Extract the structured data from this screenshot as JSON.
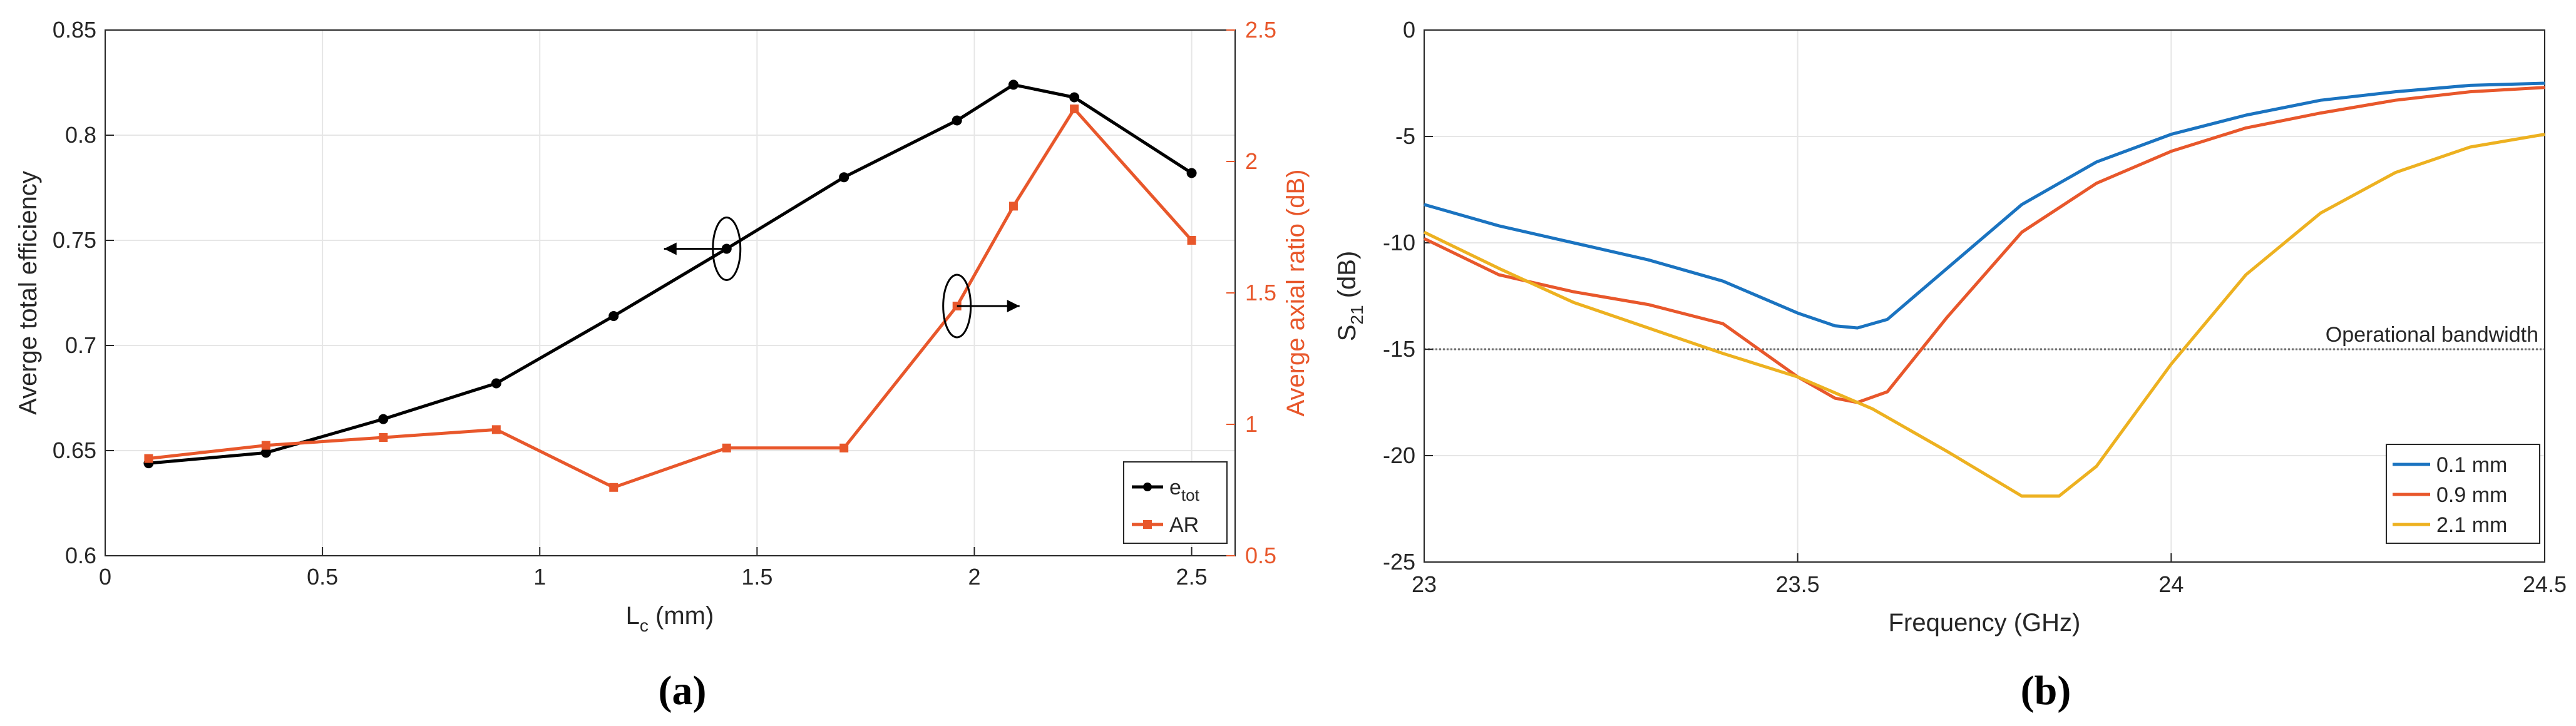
{
  "chart_data": [
    {
      "type": "line",
      "panel_label": "(a)",
      "panel_letter": "a",
      "xlabel_main": "L",
      "xlabel_sub": "c",
      "xlabel_tail": " (mm)",
      "ylabel_left": "Averge total efficiency",
      "ylabel_right": "Averge axial ratio (dB)",
      "xlim": [
        0,
        2.6
      ],
      "ylim_left": [
        0.6,
        0.85
      ],
      "ylim_right": [
        0.5,
        2.5
      ],
      "xticks": [
        "0",
        "0.5",
        "1",
        "1.5",
        "2",
        "2.5"
      ],
      "yticks_left": [
        "0.6",
        "0.65",
        "0.7",
        "0.75",
        "0.8",
        "0.85"
      ],
      "yticks_right": [
        "0.5",
        "1",
        "1.5",
        "2",
        "2.5"
      ],
      "grid": true,
      "legend_position": "bottom-right",
      "series": [
        {
          "name": "e_tot",
          "legend_main": "e",
          "legend_sub": "tot",
          "axis": "left",
          "color": "#000000",
          "marker": "circle",
          "x": [
            0.1,
            0.37,
            0.64,
            0.9,
            1.17,
            1.43,
            1.7,
            1.96,
            2.09,
            2.23,
            2.5
          ],
          "values": [
            0.644,
            0.649,
            0.665,
            0.682,
            0.714,
            0.746,
            0.78,
            0.807,
            0.824,
            0.818,
            0.782
          ]
        },
        {
          "name": "AR",
          "legend_main": "AR",
          "legend_sub": "",
          "axis": "right",
          "color": "#e8572b",
          "marker": "square",
          "x": [
            0.1,
            0.37,
            0.64,
            0.9,
            1.17,
            1.43,
            1.7,
            1.96,
            2.09,
            2.23,
            2.5
          ],
          "values": [
            0.87,
            0.92,
            0.95,
            0.98,
            0.76,
            0.91,
            0.91,
            1.45,
            1.83,
            2.2,
            1.7
          ]
        }
      ],
      "annotations": [
        {
          "type": "ellipse-arrow",
          "at_x": 1.43,
          "at_axis": "left",
          "at_y": 0.746,
          "direction": "left"
        },
        {
          "type": "ellipse-arrow",
          "at_x": 1.96,
          "at_axis": "right",
          "at_y": 1.45,
          "direction": "right"
        }
      ]
    },
    {
      "type": "line",
      "panel_label": "(b)",
      "panel_letter": "b",
      "xlabel": "Frequency (GHz)",
      "ylabel_main": "S",
      "ylabel_sub": "21",
      "ylabel_tail": " (dB)",
      "xlim": [
        23,
        24.5
      ],
      "ylim": [
        -25,
        0
      ],
      "xticks": [
        "23",
        "23.5",
        "24",
        "24.5"
      ],
      "yticks": [
        "-25",
        "-20",
        "-15",
        "-10",
        "-5",
        "0"
      ],
      "grid": true,
      "legend_position": "bottom-right",
      "reference_line": {
        "y": -15,
        "label": "Operational bandwidth"
      },
      "series": [
        {
          "name": "0.1 mm",
          "color": "#1a73c0",
          "x": [
            23,
            23.1,
            23.2,
            23.3,
            23.4,
            23.5,
            23.55,
            23.58,
            23.62,
            23.7,
            23.8,
            23.9,
            24,
            24.1,
            24.2,
            24.3,
            24.4,
            24.5
          ],
          "values": [
            -8.2,
            -9.2,
            -10.0,
            -10.8,
            -11.8,
            -13.3,
            -13.9,
            -14.0,
            -13.6,
            -11.2,
            -8.2,
            -6.2,
            -4.9,
            -4.0,
            -3.3,
            -2.9,
            -2.6,
            -2.5
          ]
        },
        {
          "name": "0.9 mm",
          "color": "#e8572b",
          "x": [
            23,
            23.1,
            23.2,
            23.3,
            23.4,
            23.5,
            23.55,
            23.58,
            23.62,
            23.7,
            23.8,
            23.9,
            24,
            24.1,
            24.2,
            24.3,
            24.4,
            24.5
          ],
          "values": [
            -9.8,
            -11.5,
            -12.3,
            -12.9,
            -13.8,
            -16.3,
            -17.3,
            -17.5,
            -17.0,
            -13.5,
            -9.5,
            -7.2,
            -5.7,
            -4.6,
            -3.9,
            -3.3,
            -2.9,
            -2.7
          ]
        },
        {
          "name": "2.1 mm",
          "color": "#edb120",
          "x": [
            23,
            23.1,
            23.2,
            23.3,
            23.4,
            23.5,
            23.6,
            23.7,
            23.8,
            23.85,
            23.9,
            24,
            24.1,
            24.2,
            24.3,
            24.4,
            24.5
          ],
          "values": [
            -9.5,
            -11.2,
            -12.8,
            -14.0,
            -15.2,
            -16.3,
            -17.8,
            -19.8,
            -21.9,
            -21.9,
            -20.5,
            -15.7,
            -11.5,
            -8.6,
            -6.7,
            -5.5,
            -4.9
          ]
        }
      ]
    }
  ]
}
